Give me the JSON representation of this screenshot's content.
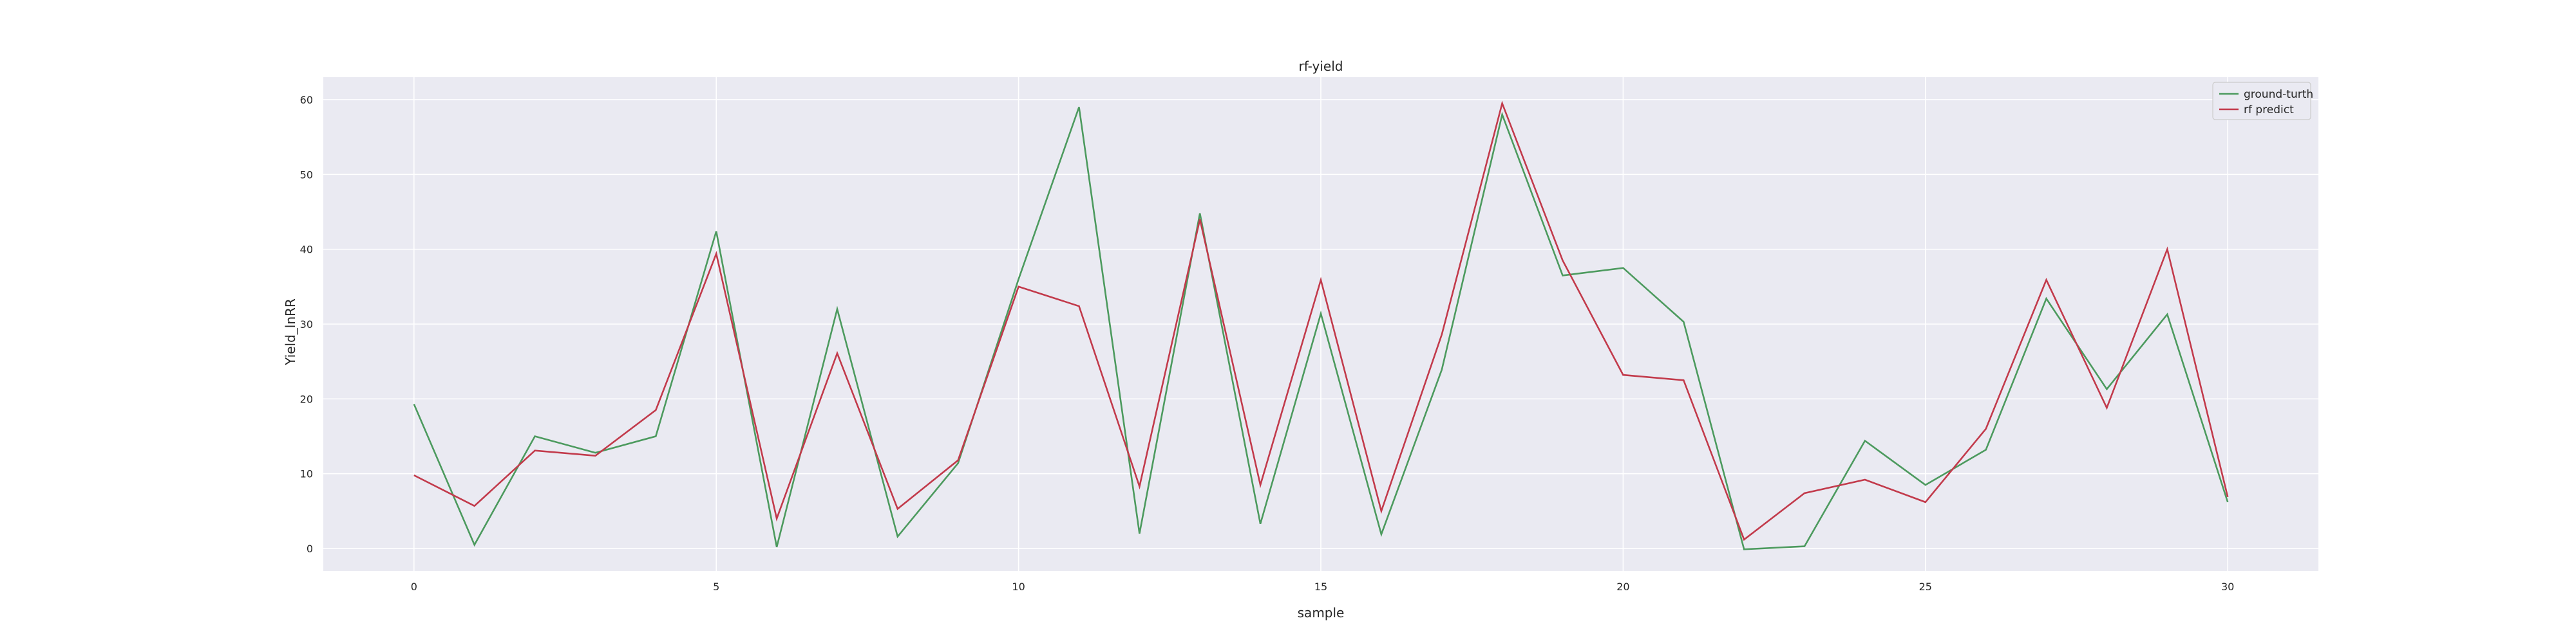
{
  "chart_data": {
    "type": "line",
    "title": "rf-yield",
    "xlabel": "sample",
    "ylabel": "Yield_lnRR",
    "xlim": [
      -1.5,
      31.5
    ],
    "ylim": [
      -3,
      63
    ],
    "xticks": [
      0,
      5,
      10,
      15,
      20,
      25,
      30
    ],
    "yticks": [
      0,
      10,
      20,
      30,
      40,
      50,
      60
    ],
    "grid": true,
    "legend_position": "top-right",
    "x": [
      0,
      1,
      2,
      3,
      4,
      5,
      6,
      7,
      8,
      9,
      10,
      11,
      12,
      13,
      14,
      15,
      16,
      17,
      18,
      19,
      20,
      21,
      22,
      23,
      24,
      25,
      26,
      27,
      28,
      29,
      30
    ],
    "series": [
      {
        "name": "ground-turth",
        "color": "#4c9a5e",
        "values": [
          19.3,
          0.5,
          15.0,
          12.8,
          15.0,
          42.4,
          0.2,
          32.0,
          1.6,
          11.4,
          36.0,
          59.0,
          2.0,
          44.8,
          3.3,
          31.4,
          1.9,
          23.9,
          58.0,
          36.5,
          37.5,
          30.3,
          -0.1,
          0.3,
          14.4,
          8.5,
          13.2,
          33.4,
          21.3,
          31.3,
          6.2
        ]
      },
      {
        "name": "rf predict",
        "color": "#c23a4b",
        "values": [
          9.8,
          5.7,
          13.1,
          12.4,
          18.5,
          39.4,
          4.0,
          26.1,
          5.3,
          11.8,
          35.0,
          32.4,
          8.3,
          44.0,
          8.5,
          35.9,
          5.0,
          28.6,
          59.5,
          38.5,
          23.2,
          22.5,
          1.2,
          7.4,
          9.2,
          6.2,
          16.0,
          35.9,
          18.8,
          40.0,
          6.9
        ]
      }
    ]
  }
}
